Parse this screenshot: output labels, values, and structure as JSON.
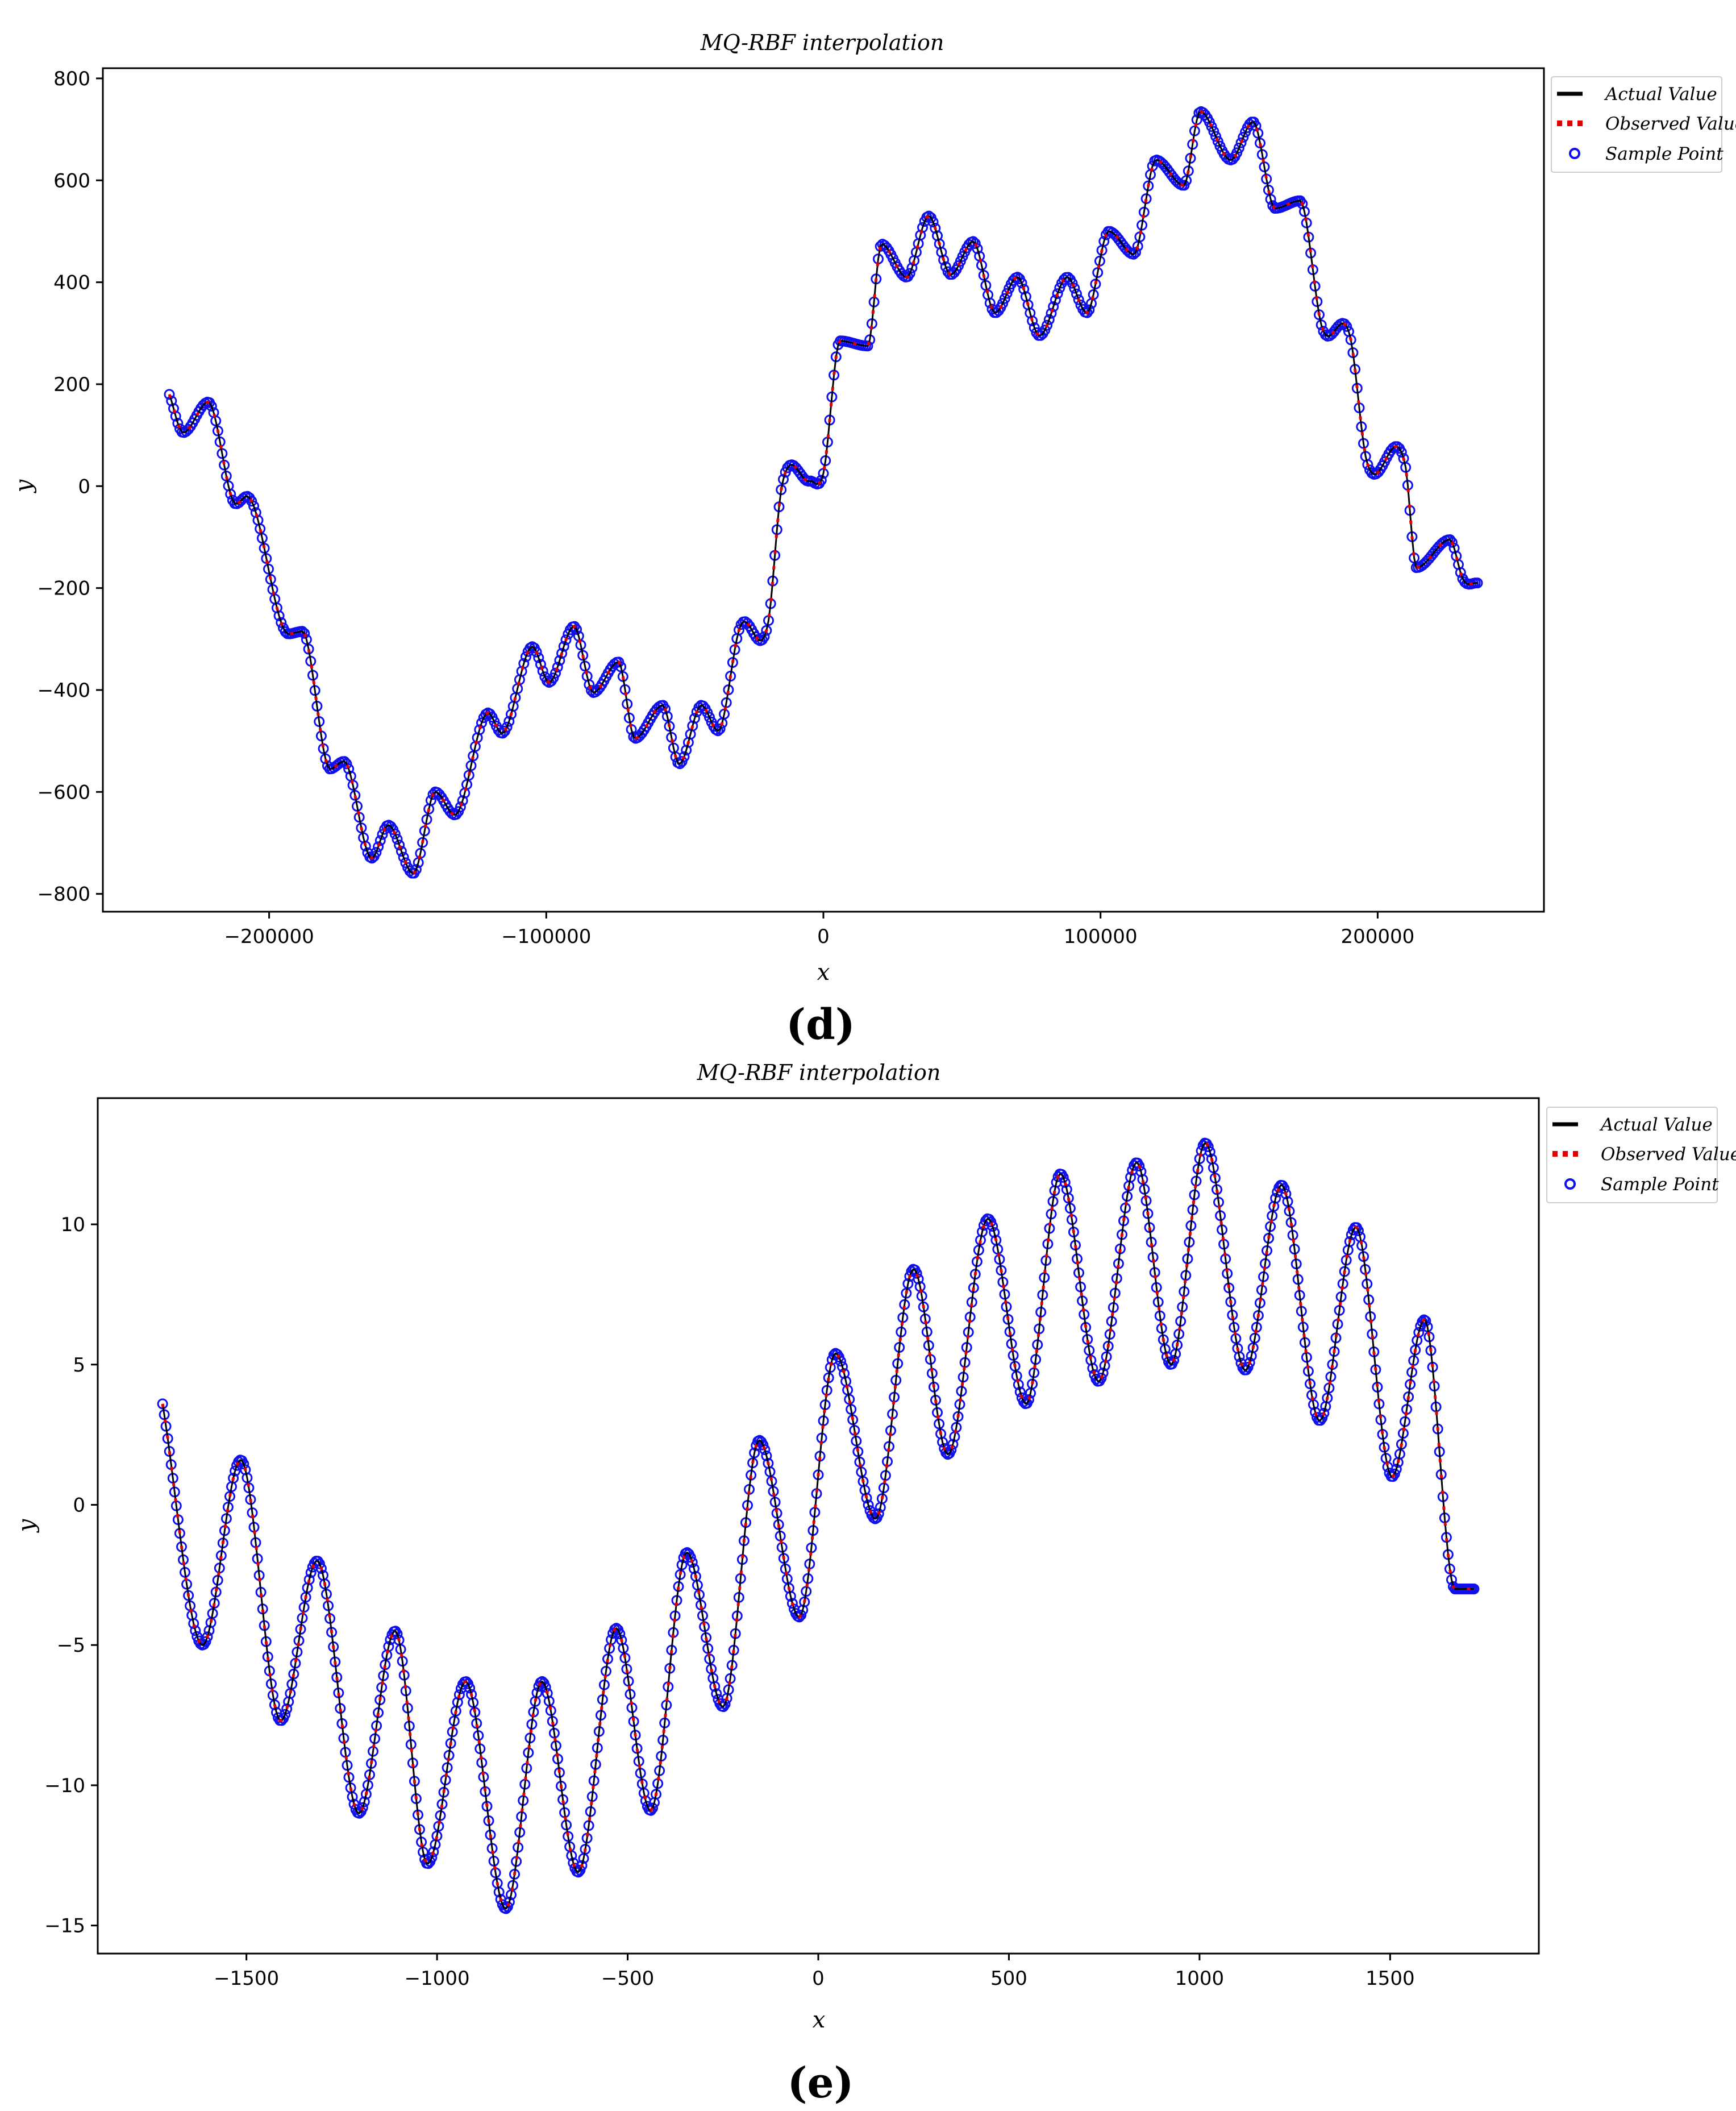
{
  "panels": {
    "d": {
      "label": "(d)"
    },
    "e": {
      "label": "(e)"
    }
  },
  "colors": {
    "actual": "#000000",
    "observed": "#e00000",
    "sample": "#1010ee"
  },
  "chart_data": [
    {
      "id": "d",
      "type": "line",
      "title": "MQ-RBF interpolation",
      "xlabel": "x",
      "ylabel": "y",
      "xlim": [
        -260000,
        260000
      ],
      "ylim": [
        -835,
        820
      ],
      "xticks": [
        -200000,
        -100000,
        0,
        100000,
        200000
      ],
      "yticks": [
        -800,
        -600,
        -400,
        -200,
        0,
        200,
        400,
        600,
        800
      ],
      "grid": false,
      "legend": "top-right outside",
      "series": [
        {
          "name": "Actual Value",
          "style": "solid black line"
        },
        {
          "name": "Observed Value",
          "style": "dotted red line"
        },
        {
          "name": "Sample Point",
          "style": "blue open circles"
        }
      ],
      "x": [
        -236000,
        -231000,
        -222000,
        -212000,
        -208000,
        -193000,
        -188000,
        -178000,
        -173000,
        -163000,
        -157000,
        -148000,
        -140000,
        -133000,
        -121000,
        -116000,
        -105000,
        -99000,
        -90000,
        -83000,
        -74000,
        -68000,
        -58000,
        -52000,
        -44000,
        -38000,
        -30000,
        -20000,
        -15000,
        -5000,
        0,
        6000,
        16000,
        21000,
        30000,
        38000,
        46000,
        54000,
        62000,
        70000,
        78000,
        88000,
        95000,
        103000,
        112000,
        120000,
        130000,
        136000,
        147000,
        155000,
        163000,
        172000,
        180000,
        190000,
        196000,
        210000,
        214000,
        226000,
        231000,
        236000
      ],
      "values": [
        180,
        105,
        165,
        -35,
        -20,
        -290,
        -285,
        -555,
        -540,
        -730,
        -665,
        -760,
        -600,
        -645,
        -445,
        -485,
        -315,
        -385,
        -275,
        -405,
        -345,
        -495,
        -430,
        -545,
        -430,
        -480,
        -275,
        -270,
        0,
        10,
        25,
        285,
        275,
        475,
        410,
        530,
        415,
        480,
        340,
        410,
        295,
        410,
        340,
        500,
        455,
        640,
        590,
        735,
        640,
        715,
        545,
        560,
        310,
        295,
        50,
        40,
        -160,
        -105,
        -185,
        -190
      ]
    },
    {
      "id": "e",
      "type": "line",
      "title": "MQ-RBF interpolation",
      "xlabel": "x",
      "ylabel": "y",
      "xlim": [
        -1890,
        1890
      ],
      "ylim": [
        -16,
        14.5
      ],
      "xticks": [
        -1500,
        -1000,
        -500,
        0,
        500,
        1000,
        1500
      ],
      "yticks": [
        -15,
        -10,
        -5,
        0,
        5,
        10
      ],
      "grid": false,
      "legend": "top-right outside",
      "series": [
        {
          "name": "Actual Value",
          "style": "solid black line"
        },
        {
          "name": "Observed Value",
          "style": "dotted red line"
        },
        {
          "name": "Sample Point",
          "style": "blue open circles"
        }
      ],
      "x": [
        -1720,
        -1615,
        -1515,
        -1410,
        -1315,
        -1205,
        -1110,
        -1025,
        -925,
        -820,
        -725,
        -630,
        -530,
        -440,
        -345,
        -250,
        -155,
        -50,
        45,
        150,
        250,
        340,
        445,
        545,
        635,
        735,
        835,
        925,
        1015,
        1120,
        1215,
        1315,
        1410,
        1505,
        1590,
        1670,
        1720
      ],
      "values": [
        3.6,
        -5.0,
        1.6,
        -7.7,
        -2.0,
        -11.0,
        -4.5,
        -12.8,
        -6.3,
        -14.4,
        -6.3,
        -13.1,
        -4.4,
        -10.9,
        -1.7,
        -7.2,
        2.3,
        -4.0,
        5.4,
        -0.5,
        8.4,
        1.8,
        10.2,
        3.6,
        11.8,
        4.4,
        12.2,
        5.0,
        12.9,
        4.8,
        11.4,
        3.0,
        9.9,
        1.0,
        6.6,
        -3.0,
        -3.0
      ]
    }
  ]
}
